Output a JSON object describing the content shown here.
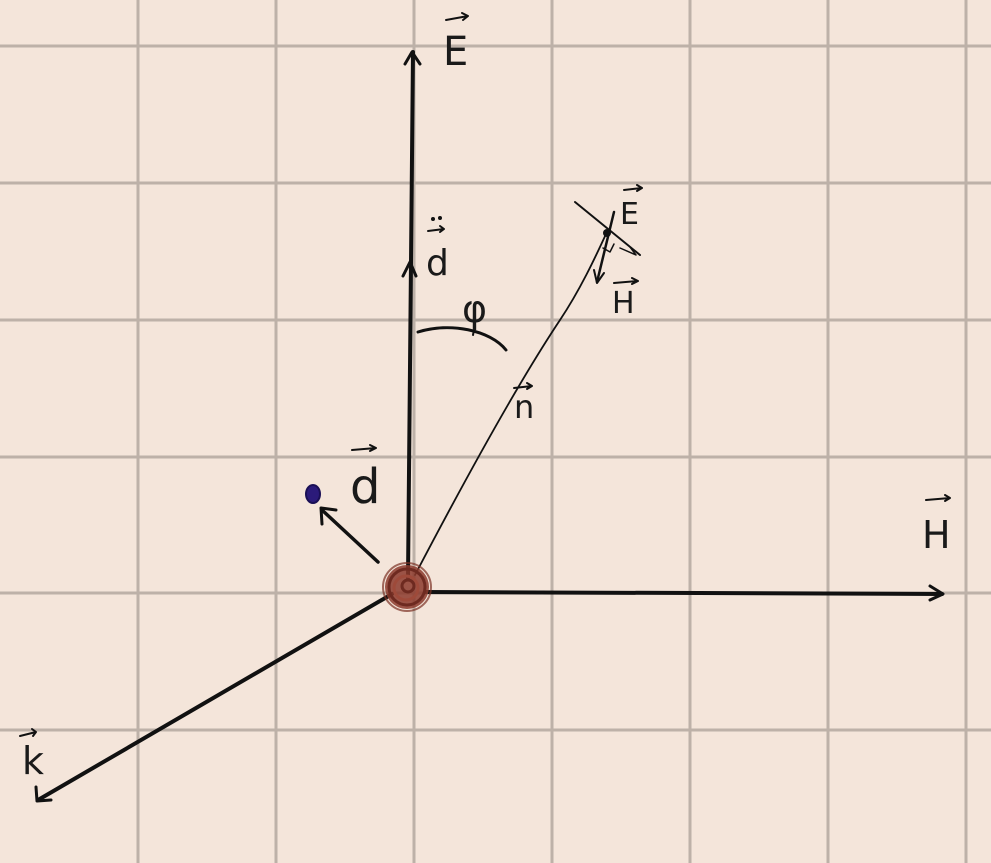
{
  "colors": {
    "paper": "#f4e5da",
    "grid": "#9a8f88",
    "ink": "#111111",
    "charge": "#8b3a2c",
    "electron": "#2b1a7a"
  },
  "labels": {
    "E_axis": "E",
    "H_axis": "H",
    "k_axis": "k",
    "d_ddot": "d",
    "d_vec": "d",
    "psi": "φ",
    "n_vec": "n",
    "E_far": "E",
    "H_far": "H"
  }
}
